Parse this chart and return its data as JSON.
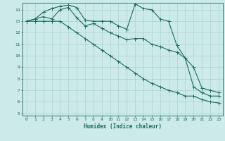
{
  "xlabel": "Humidex (Indice chaleur)",
  "ylabel": "",
  "background_color": "#cceae8",
  "grid_color": "#aad4d0",
  "line_color": "#1e6b5e",
  "xlim": [
    -0.5,
    23.5
  ],
  "ylim": [
    4.8,
    14.6
  ],
  "xticks": [
    0,
    1,
    2,
    3,
    4,
    5,
    6,
    7,
    8,
    9,
    10,
    11,
    12,
    13,
    14,
    15,
    16,
    17,
    18,
    19,
    20,
    21,
    22,
    23
  ],
  "yticks": [
    5,
    6,
    7,
    8,
    9,
    10,
    11,
    12,
    13,
    14
  ],
  "line1_x": [
    0,
    1,
    2,
    3,
    4,
    5,
    6,
    7,
    8,
    9,
    10,
    11,
    12,
    13,
    14,
    15,
    16,
    17,
    18,
    19,
    20,
    21,
    22,
    23
  ],
  "line1_y": [
    13.0,
    13.2,
    13.8,
    14.1,
    14.3,
    14.4,
    14.2,
    13.1,
    13.0,
    13.0,
    13.0,
    12.6,
    12.3,
    14.5,
    14.1,
    14.0,
    13.2,
    13.0,
    10.9,
    9.8,
    9.0,
    7.2,
    7.0,
    6.8
  ],
  "line2_x": [
    0,
    1,
    2,
    3,
    4,
    5,
    6,
    7,
    8,
    9,
    10,
    11,
    12,
    13,
    14,
    15,
    16,
    17,
    18,
    19,
    20,
    21,
    22,
    23
  ],
  "line2_y": [
    13.0,
    13.2,
    13.4,
    13.2,
    14.0,
    14.2,
    13.3,
    12.6,
    12.8,
    12.4,
    12.0,
    11.7,
    11.4,
    11.5,
    11.5,
    11.0,
    10.8,
    10.5,
    10.3,
    9.8,
    7.3,
    6.8,
    6.5,
    6.5
  ],
  "line3_x": [
    0,
    1,
    2,
    3,
    4,
    5,
    6,
    7,
    8,
    9,
    10,
    11,
    12,
    13,
    14,
    15,
    16,
    17,
    18,
    19,
    20,
    21,
    22,
    23
  ],
  "line3_y": [
    13.0,
    13.0,
    13.0,
    13.0,
    13.0,
    12.5,
    12.0,
    11.5,
    11.0,
    10.5,
    10.0,
    9.5,
    9.0,
    8.5,
    8.0,
    7.6,
    7.3,
    7.0,
    6.8,
    6.5,
    6.5,
    6.2,
    6.0,
    5.9
  ],
  "marker_size": 1.8,
  "line_width": 0.8
}
